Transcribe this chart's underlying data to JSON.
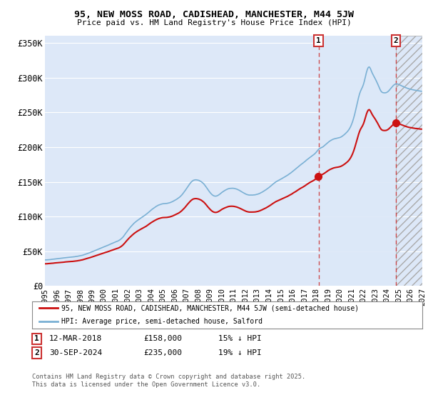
{
  "title1": "95, NEW MOSS ROAD, CADISHEAD, MANCHESTER, M44 5JW",
  "title2": "Price paid vs. HM Land Registry's House Price Index (HPI)",
  "ylim": [
    0,
    360000
  ],
  "yticks": [
    0,
    50000,
    100000,
    150000,
    200000,
    250000,
    300000,
    350000
  ],
  "ytick_labels": [
    "£0",
    "£50K",
    "£100K",
    "£150K",
    "£200K",
    "£250K",
    "£300K",
    "£350K"
  ],
  "background_color": "#ffffff",
  "plot_bg_color": "#dde8f8",
  "grid_color": "#ffffff",
  "annotation1": {
    "label": "1",
    "date": "12-MAR-2018",
    "price": 158000,
    "pct": "15% ↓ HPI",
    "x_year": 2018.19
  },
  "annotation2": {
    "label": "2",
    "date": "30-SEP-2024",
    "price": 235000,
    "pct": "19% ↓ HPI",
    "x_year": 2024.75
  },
  "legend_line1": "95, NEW MOSS ROAD, CADISHEAD, MANCHESTER, M44 5JW (semi-detached house)",
  "legend_line2": "HPI: Average price, semi-detached house, Salford",
  "footer": "Contains HM Land Registry data © Crown copyright and database right 2025.\nThis data is licensed under the Open Government Licence v3.0.",
  "line_color_hpi": "#7ab0d4",
  "line_color_price": "#cc1111",
  "vline_color": "#cc3333",
  "shade_between_color": "#dce8f5",
  "xlim_left": 1995.0,
  "xlim_right": 2027.0,
  "hatch_start": 2024.75
}
